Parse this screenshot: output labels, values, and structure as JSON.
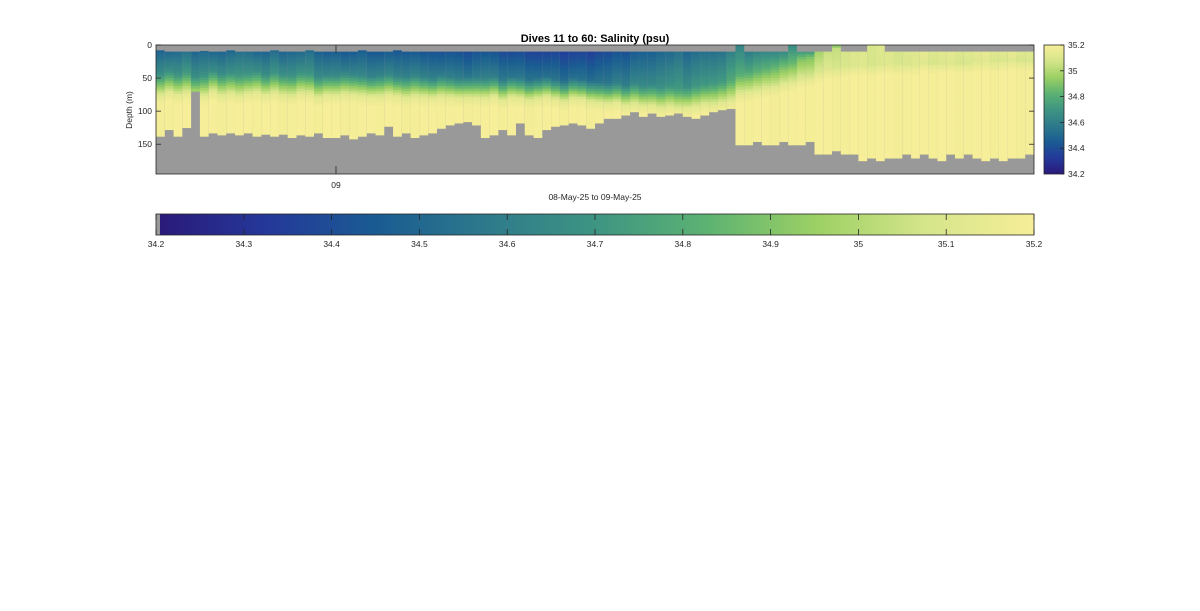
{
  "chart_data": {
    "type": "heatmap",
    "title": "Dives 11 to 60: Salinity (psu)",
    "ylabel": "Depth (m)",
    "xlabel": "08-May-25 to 09-May-25",
    "x_tick_labels": [
      "09"
    ],
    "x_tick_positions_dive": [
      20.5
    ],
    "dives": [
      11,
      60
    ],
    "n_profiles": 100,
    "y_range": [
      0,
      195
    ],
    "y_reversed": true,
    "y_tick_values": [
      0,
      50,
      100,
      150
    ],
    "y_tick_labels": [
      "0",
      "50",
      "100",
      "150"
    ],
    "clim": [
      34.2,
      35.2
    ],
    "colormap": "haline",
    "colormap_stops": [
      "#2a1a7a",
      "#24399a",
      "#1a5c92",
      "#2e7a8b",
      "#3e9582",
      "#5cb272",
      "#9cd064",
      "#d5e58a",
      "#f6ee98"
    ],
    "nodata_color": "#999999",
    "side_colorbar_ticks": [
      "34.2",
      "34.4",
      "34.6",
      "34.8",
      "35",
      "35.2"
    ],
    "bottom_colorbar_ticks": [
      "34.2",
      "34.3",
      "34.4",
      "34.5",
      "34.6",
      "34.7",
      "34.8",
      "34.9",
      "35",
      "35.1",
      "35.2"
    ],
    "bottom_depth_m": [
      138,
      128,
      138,
      125,
      70,
      138,
      133,
      136,
      133,
      136,
      133,
      138,
      135,
      138,
      135,
      140,
      136,
      138,
      133,
      140,
      140,
      136,
      142,
      138,
      133,
      136,
      123,
      138,
      133,
      140,
      136,
      133,
      126,
      121,
      118,
      116,
      121,
      140,
      136,
      128,
      136,
      118,
      136,
      140,
      128,
      123,
      121,
      118,
      121,
      126,
      118,
      111,
      111,
      106,
      101,
      108,
      103,
      108,
      106,
      103,
      108,
      111,
      106,
      101,
      98,
      96,
      151,
      151,
      146,
      151,
      151,
      146,
      151,
      151,
      146,
      165,
      165,
      160,
      165,
      165,
      175,
      171,
      175,
      171,
      171,
      165,
      171,
      165,
      171,
      175,
      165,
      171,
      165,
      171,
      175,
      171,
      175,
      171,
      171,
      165
    ],
    "surface_gap_m": [
      8,
      10,
      10,
      10,
      10,
      9,
      10,
      10,
      8,
      10,
      10,
      10,
      10,
      8,
      10,
      10,
      10,
      8,
      10,
      10,
      10,
      10,
      10,
      8,
      10,
      10,
      10,
      8,
      10,
      10,
      10,
      10,
      10,
      10,
      10,
      10,
      10,
      10,
      10,
      10,
      10,
      10,
      10,
      10,
      10,
      10,
      10,
      10,
      10,
      10,
      10,
      10,
      10,
      10,
      10,
      10,
      10,
      10,
      10,
      10,
      10,
      10,
      10,
      10,
      10,
      10,
      0,
      10,
      10,
      10,
      10,
      10,
      0,
      10,
      10,
      10,
      10,
      0,
      10,
      10,
      10,
      0,
      0,
      10,
      10,
      10,
      10,
      10,
      10,
      10,
      10,
      10,
      10,
      10,
      10,
      10,
      10,
      10,
      10,
      10
    ],
    "halocline_depth_m": [
      62,
      58,
      63,
      60,
      66,
      64,
      58,
      62,
      60,
      64,
      62,
      58,
      63,
      60,
      62,
      64,
      60,
      62,
      66,
      63,
      64,
      60,
      62,
      64,
      66,
      64,
      62,
      65,
      66,
      64,
      66,
      68,
      64,
      66,
      68,
      66,
      67,
      68,
      66,
      70,
      66,
      68,
      70,
      68,
      66,
      70,
      72,
      68,
      70,
      72,
      74,
      76,
      75,
      78,
      76,
      80,
      78,
      82,
      80,
      84,
      82,
      80,
      78,
      76,
      74,
      72,
      62,
      58,
      56,
      54,
      50,
      46,
      44,
      40,
      36,
      30,
      26,
      24,
      22,
      20,
      20,
      20,
      18,
      18,
      18,
      18,
      18,
      16,
      16,
      16,
      16,
      16,
      16,
      14,
      14,
      14,
      12,
      12,
      12,
      12
    ],
    "surface_min_psu": [
      34.5,
      34.5,
      34.5,
      34.52,
      34.5,
      34.5,
      34.48,
      34.5,
      34.5,
      34.52,
      34.5,
      34.5,
      34.48,
      34.5,
      34.5,
      34.5,
      34.5,
      34.5,
      34.48,
      34.45,
      34.45,
      34.45,
      34.45,
      34.45,
      34.42,
      34.45,
      34.45,
      34.42,
      34.45,
      34.45,
      34.42,
      34.4,
      34.42,
      34.42,
      34.4,
      34.4,
      34.42,
      34.42,
      34.4,
      34.4,
      34.38,
      34.38,
      34.38,
      34.36,
      34.35,
      34.35,
      34.35,
      34.35,
      34.35,
      34.36,
      34.38,
      34.38,
      34.4,
      34.42,
      34.45,
      34.45,
      34.48,
      34.5,
      34.5,
      34.52,
      34.5,
      34.52,
      34.52,
      34.55,
      34.55,
      34.6,
      34.6,
      34.6,
      34.62,
      34.62,
      34.65,
      34.65,
      34.65,
      34.7,
      34.72,
      34.8,
      34.85,
      34.88,
      34.9,
      34.92,
      34.92,
      34.92,
      34.93,
      34.93,
      34.93,
      34.94,
      34.94,
      34.95,
      34.95,
      34.95,
      34.96,
      34.96,
      34.96,
      34.97,
      34.97,
      34.97,
      34.97,
      34.98,
      34.98,
      34.98
    ]
  }
}
